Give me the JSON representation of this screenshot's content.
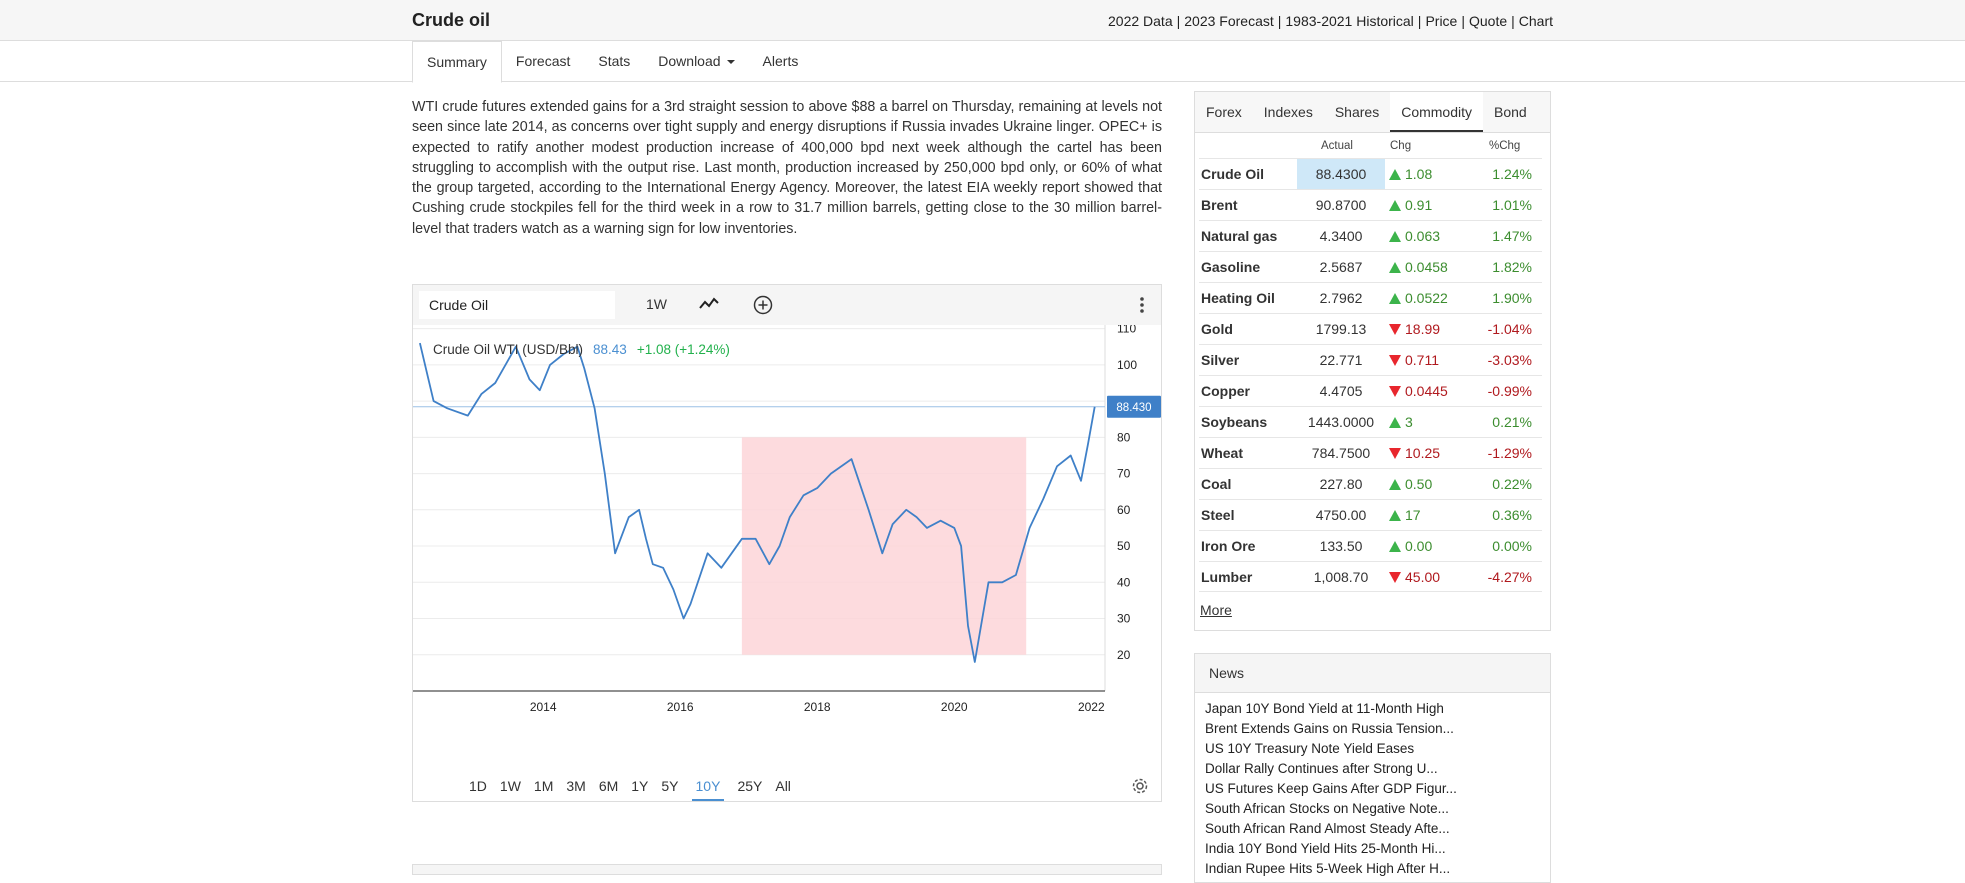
{
  "header": {
    "title": "Crude oil",
    "links": [
      "2022 Data",
      "2023 Forecast",
      "1983-2021 Historical",
      "Price",
      "Quote",
      "Chart"
    ]
  },
  "nav": {
    "tabs": [
      "Summary",
      "Forecast",
      "Stats",
      "Download",
      "Alerts"
    ],
    "active": "Summary"
  },
  "article": {
    "text": "WTI crude futures extended gains for a 3rd straight session to above $88 a barrel on Thursday, remaining at levels not seen since late 2014, as concerns over tight supply and energy disruptions if Russia invades Ukraine linger. OPEC+ is expected to ratify another modest production increase of 400,000 bpd next week although the cartel has been struggling to accomplish with the output rise. Last month, production increased by 250,000 bpd only, or 60% of what the group targeted, according to the International Energy Agency. Moreover, the latest EIA weekly report showed that Cushing crude stockpiles fell for the third week in a row to 31.7 million barrels, getting close to the 30 million barrel-level that traders watch as a warning sign for low inventories."
  },
  "chart_widget": {
    "symbol": "Crude Oil",
    "interval": "1W",
    "legend_name": "Crude Oil WTI (USD/Bbl)",
    "legend_price": "88.43",
    "legend_change": "+1.08 (+1.24%)",
    "ranges": [
      "1D",
      "1W",
      "1M",
      "3M",
      "6M",
      "1Y",
      "5Y",
      "10Y",
      "25Y",
      "All"
    ],
    "active_range": "10Y",
    "colors": {
      "line": "#3f80c8",
      "shade": "#fdd5d8",
      "price_tag": "#3f80c8"
    }
  },
  "chart_data": {
    "type": "line",
    "series": [
      {
        "name": "Crude Oil WTI (USD/Bbl)"
      }
    ],
    "x": [
      2012.2,
      2012.4,
      2012.6,
      2012.9,
      2013.1,
      2013.3,
      2013.6,
      2013.8,
      2013.95,
      2014.1,
      2014.3,
      2014.5,
      2014.6,
      2014.75,
      2014.9,
      2015.05,
      2015.25,
      2015.4,
      2015.5,
      2015.6,
      2015.75,
      2015.9,
      2016.05,
      2016.15,
      2016.4,
      2016.6,
      2016.75,
      2016.9,
      2017.1,
      2017.3,
      2017.45,
      2017.6,
      2017.8,
      2018.0,
      2018.2,
      2018.5,
      2018.75,
      2018.95,
      2019.1,
      2019.3,
      2019.45,
      2019.6,
      2019.8,
      2020.0,
      2020.1,
      2020.2,
      2020.3,
      2020.5,
      2020.7,
      2020.9,
      2021.1,
      2021.3,
      2021.5,
      2021.7,
      2021.85,
      2021.95,
      2022.05
    ],
    "y": [
      106,
      90,
      88,
      86,
      92,
      95,
      105,
      96,
      93,
      100,
      103,
      105,
      99,
      88,
      70,
      48,
      58,
      60,
      52,
      45,
      44,
      38,
      30,
      34,
      48,
      44,
      48,
      52,
      52,
      45,
      50,
      58,
      64,
      66,
      70,
      74,
      60,
      48,
      56,
      60,
      58,
      55,
      57,
      55,
      50,
      28,
      18,
      40,
      40,
      42,
      55,
      63,
      72,
      75,
      68,
      78,
      88.43
    ],
    "shaded_region": {
      "x": [
        2016.9,
        2021.05
      ],
      "y": [
        20,
        80
      ]
    },
    "xticks": [
      2014,
      2016,
      2018,
      2020,
      2022
    ],
    "yticks": [
      20,
      30,
      40,
      50,
      60,
      70,
      80,
      90,
      100,
      110
    ],
    "ytick_labels": [
      "20",
      "30",
      "40",
      "50",
      "60",
      "70",
      "80",
      "",
      "100",
      "110"
    ],
    "last_price_label": "88.430",
    "last_price": 88.43,
    "xlim": [
      2012.1,
      2022.2
    ],
    "ylim": [
      10,
      111
    ]
  },
  "markets": {
    "tabs": [
      "Forex",
      "Indexes",
      "Shares",
      "Commodity",
      "Bond"
    ],
    "active_tab": "Commodity",
    "columns": [
      "Actual",
      "Chg",
      "%Chg"
    ],
    "rows": [
      {
        "name": "Crude Oil",
        "actual": "88.4300",
        "chg": "1.08",
        "pct": "1.24%",
        "dir": "up"
      },
      {
        "name": "Brent",
        "actual": "90.8700",
        "chg": "0.91",
        "pct": "1.01%",
        "dir": "up"
      },
      {
        "name": "Natural gas",
        "actual": "4.3400",
        "chg": "0.063",
        "pct": "1.47%",
        "dir": "up"
      },
      {
        "name": "Gasoline",
        "actual": "2.5687",
        "chg": "0.0458",
        "pct": "1.82%",
        "dir": "up"
      },
      {
        "name": "Heating Oil",
        "actual": "2.7962",
        "chg": "0.0522",
        "pct": "1.90%",
        "dir": "up"
      },
      {
        "name": "Gold",
        "actual": "1799.13",
        "chg": "18.99",
        "pct": "-1.04%",
        "dir": "down"
      },
      {
        "name": "Silver",
        "actual": "22.771",
        "chg": "0.711",
        "pct": "-3.03%",
        "dir": "down"
      },
      {
        "name": "Copper",
        "actual": "4.4705",
        "chg": "0.0445",
        "pct": "-0.99%",
        "dir": "down"
      },
      {
        "name": "Soybeans",
        "actual": "1443.0000",
        "chg": "3",
        "pct": "0.21%",
        "dir": "up"
      },
      {
        "name": "Wheat",
        "actual": "784.7500",
        "chg": "10.25",
        "pct": "-1.29%",
        "dir": "down"
      },
      {
        "name": "Coal",
        "actual": "227.80",
        "chg": "0.50",
        "pct": "0.22%",
        "dir": "up"
      },
      {
        "name": "Steel",
        "actual": "4750.00",
        "chg": "17",
        "pct": "0.36%",
        "dir": "up"
      },
      {
        "name": "Iron Ore",
        "actual": "133.50",
        "chg": "0.00",
        "pct": "0.00%",
        "dir": "up"
      },
      {
        "name": "Lumber",
        "actual": "1,008.70",
        "chg": "45.00",
        "pct": "-4.27%",
        "dir": "down"
      }
    ],
    "more_label": "More"
  },
  "news": {
    "title": "News",
    "items": [
      "Japan 10Y Bond Yield at 11-Month High",
      "Brent Extends Gains on Russia Tension...",
      "US 10Y Treasury Note Yield Eases",
      "Dollar Rally Continues after Strong U...",
      "US Futures Keep Gains After GDP Figur...",
      "South African Stocks on Negative Note...",
      "South African Rand Almost Steady Afte...",
      "India 10Y Bond Yield Hits 25-Month Hi...",
      "Indian Rupee Hits 5-Week High After H..."
    ]
  }
}
